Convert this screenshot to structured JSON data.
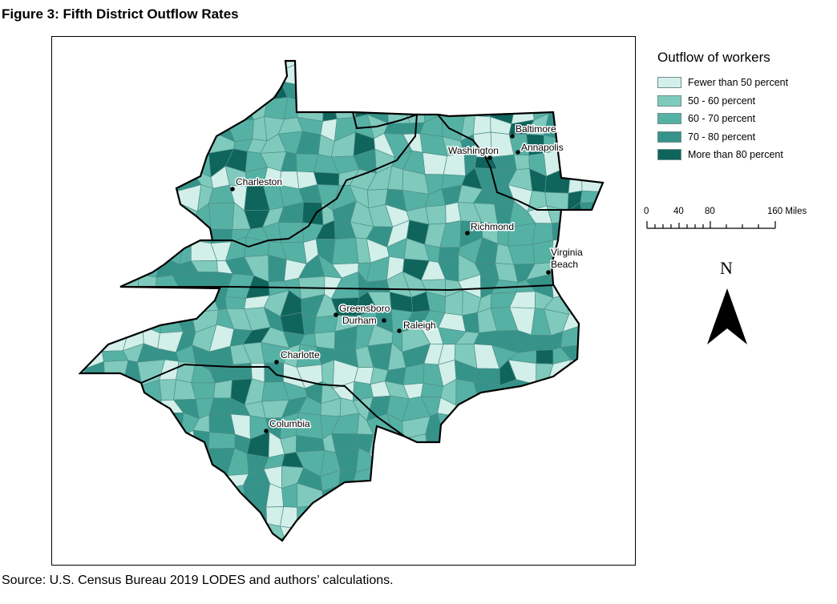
{
  "figure_title": "Figure 3: Fifth District Outflow Rates",
  "source": "Source: U.S. Census Bureau 2019 LODES and authors’ calculations.",
  "legend": {
    "title": "Outflow of workers",
    "items": [
      {
        "label": "Fewer than 50 percent",
        "color": "#d2efe9"
      },
      {
        "label": "50 - 60 percent",
        "color": "#7fcabd"
      },
      {
        "label": "60 - 70 percent",
        "color": "#56b1a5"
      },
      {
        "label": "70 - 80 percent",
        "color": "#35938a"
      },
      {
        "label": "More than 80 percent",
        "color": "#0f645c"
      }
    ]
  },
  "scale_bar": {
    "labels": [
      "0",
      "40",
      "80",
      "160 Miles"
    ]
  },
  "north_arrow": {
    "label": "N"
  },
  "cities": {
    "charleston": "Charleston",
    "baltimore": "Baltimore",
    "washington": "Washington",
    "annapolis": "Annapolis",
    "richmond": "Richmond",
    "virginia_beach_1": "Virginia",
    "virginia_beach_2": "Beach",
    "greensboro": "Greensboro",
    "durham": "Durham",
    "raleigh": "Raleigh",
    "charlotte": "Charlotte",
    "columbia": "Columbia"
  }
}
